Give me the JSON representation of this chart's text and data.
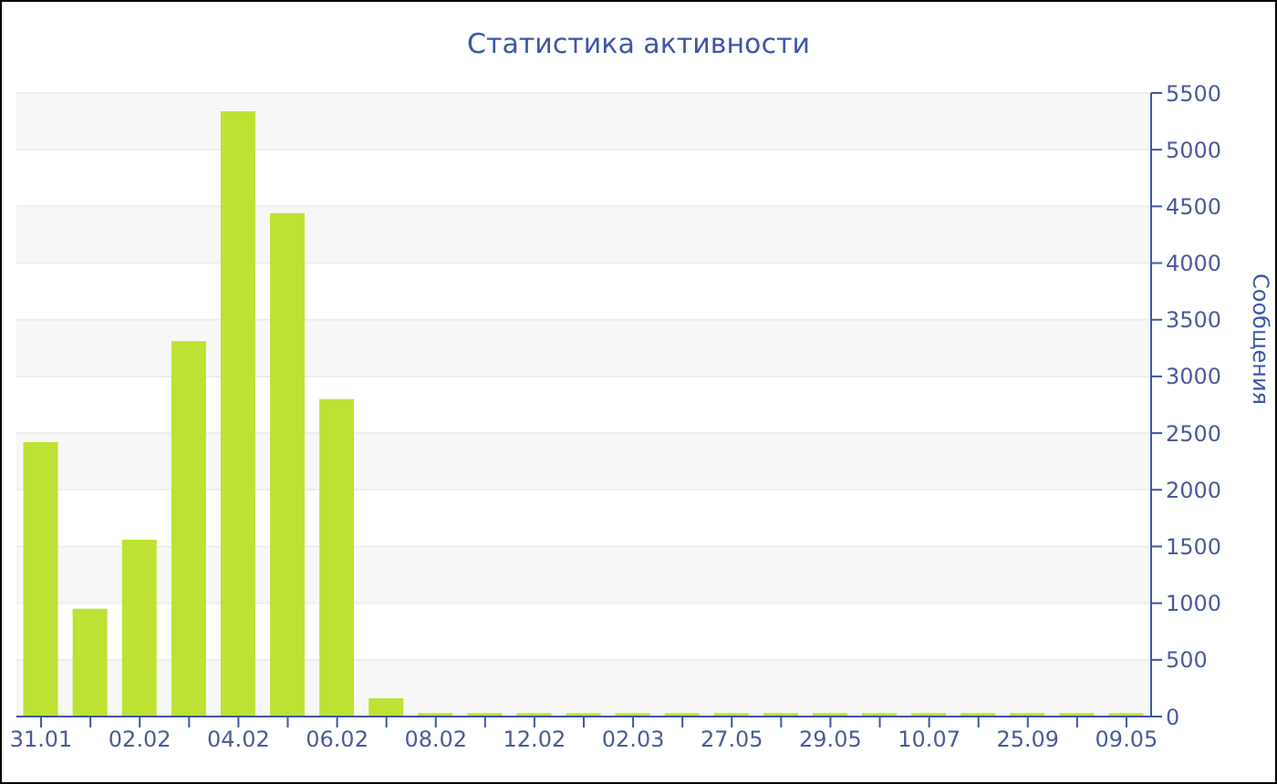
{
  "chart_data": {
    "type": "bar",
    "title": "Статистика активности",
    "ylabel": "Сообщения",
    "categories": [
      "31.01",
      null,
      "02.02",
      null,
      "04.02",
      null,
      "06.02",
      null,
      "08.02",
      null,
      "12.02",
      null,
      "02.03",
      null,
      "27.05",
      null,
      "29.05",
      null,
      "10.07",
      null,
      "25.09",
      null,
      "09.05"
    ],
    "values": [
      2420,
      950,
      1560,
      3310,
      5340,
      4440,
      2800,
      160,
      30,
      30,
      30,
      30,
      30,
      30,
      30,
      30,
      30,
      30,
      30,
      30,
      30,
      30,
      30
    ],
    "color": "#bde233",
    "ylim": [
      0,
      5500
    ],
    "yticks": [
      0,
      500,
      1000,
      1500,
      2000,
      2500,
      3000,
      3500,
      4000,
      4500,
      5000,
      5500
    ],
    "grid": "y"
  }
}
